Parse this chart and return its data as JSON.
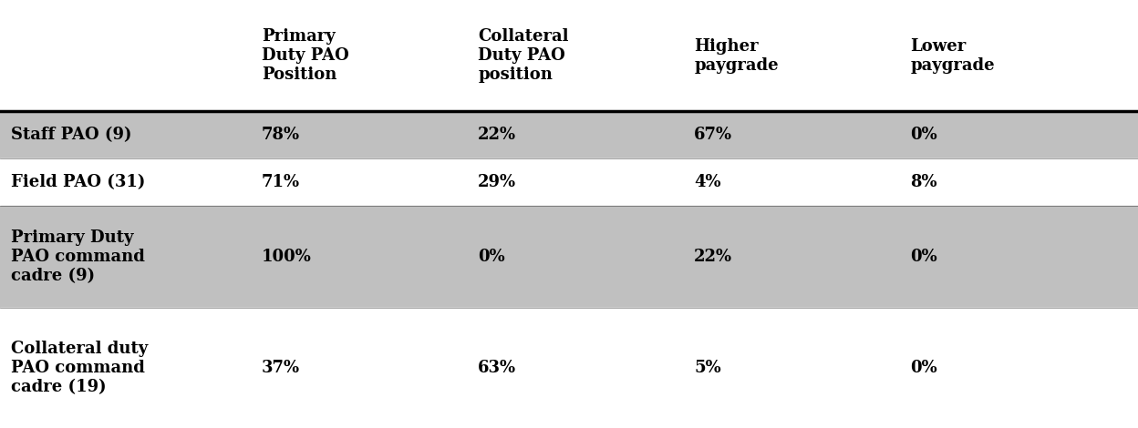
{
  "col_headers": [
    "Primary\nDuty PAO\nPosition",
    "Collateral\nDuty PAO\nposition",
    "Higher\npaygrade",
    "Lower\npaygrade"
  ],
  "row_labels": [
    "Staff PAO (9)",
    "Field PAO (31)",
    "Primary Duty\nPAO command\ncadre (9)",
    "Collateral duty\nPAO command\ncadre (19)"
  ],
  "table_data": [
    [
      "78%",
      "22%",
      "67%",
      "0%"
    ],
    [
      "71%",
      "29%",
      "4%",
      "8%"
    ],
    [
      "100%",
      "0%",
      "22%",
      "0%"
    ],
    [
      "37%",
      "63%",
      "5%",
      "0%"
    ]
  ],
  "shaded_rows": [
    0,
    2
  ],
  "shade_color": "#c0c0c0",
  "white_color": "#ffffff",
  "bg_color": "#ffffff",
  "header_line_color": "#000000",
  "text_color": "#000000",
  "font_size": 13,
  "header_font_size": 13
}
